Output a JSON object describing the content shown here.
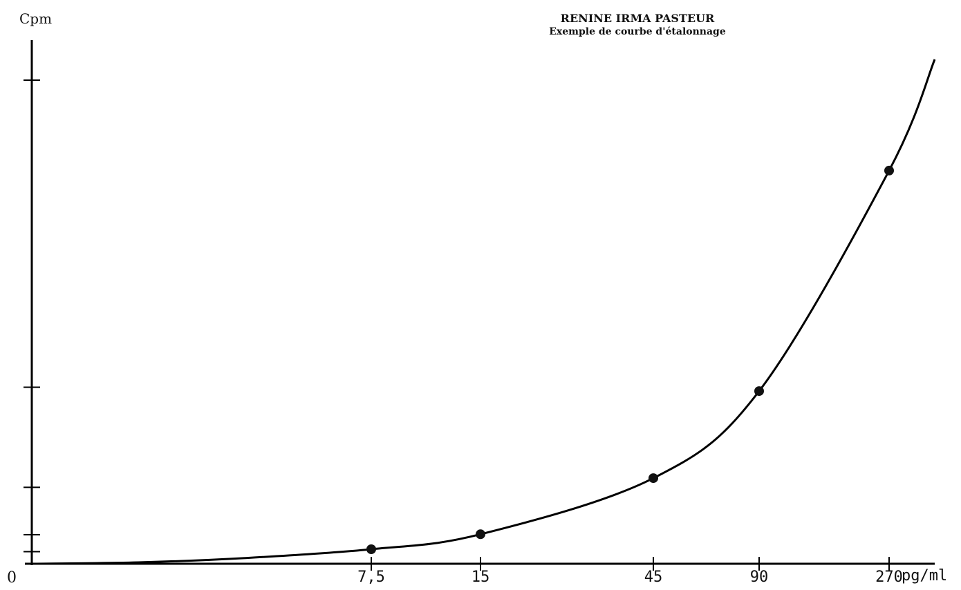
{
  "chart_data": {
    "type": "line",
    "title": "RENINE IRMA PASTEUR",
    "subtitle": "Exemple de courbe d'étalonnage",
    "ylabel": "Cpm",
    "xlabel": "pg/ml",
    "origin_label": "0",
    "x_tick_labels": [
      "7,5",
      "15",
      "45",
      "90",
      "270"
    ],
    "series": [
      {
        "values": [
          {
            "x": "7,5",
            "y": 3.0
          },
          {
            "x": "15",
            "y": 6.1
          },
          {
            "x": "45",
            "y": 17.7
          },
          {
            "x": "90",
            "y": 35.7
          },
          {
            "x": "270",
            "y": 81.3
          }
        ]
      }
    ],
    "y_ticks": [
      2.5,
      6.0,
      15.8,
      36.5,
      100
    ],
    "ylim": [
      0,
      108
    ],
    "grid": false,
    "legend": "none",
    "colors": {
      "line": "#000000",
      "points": "#111111"
    }
  }
}
